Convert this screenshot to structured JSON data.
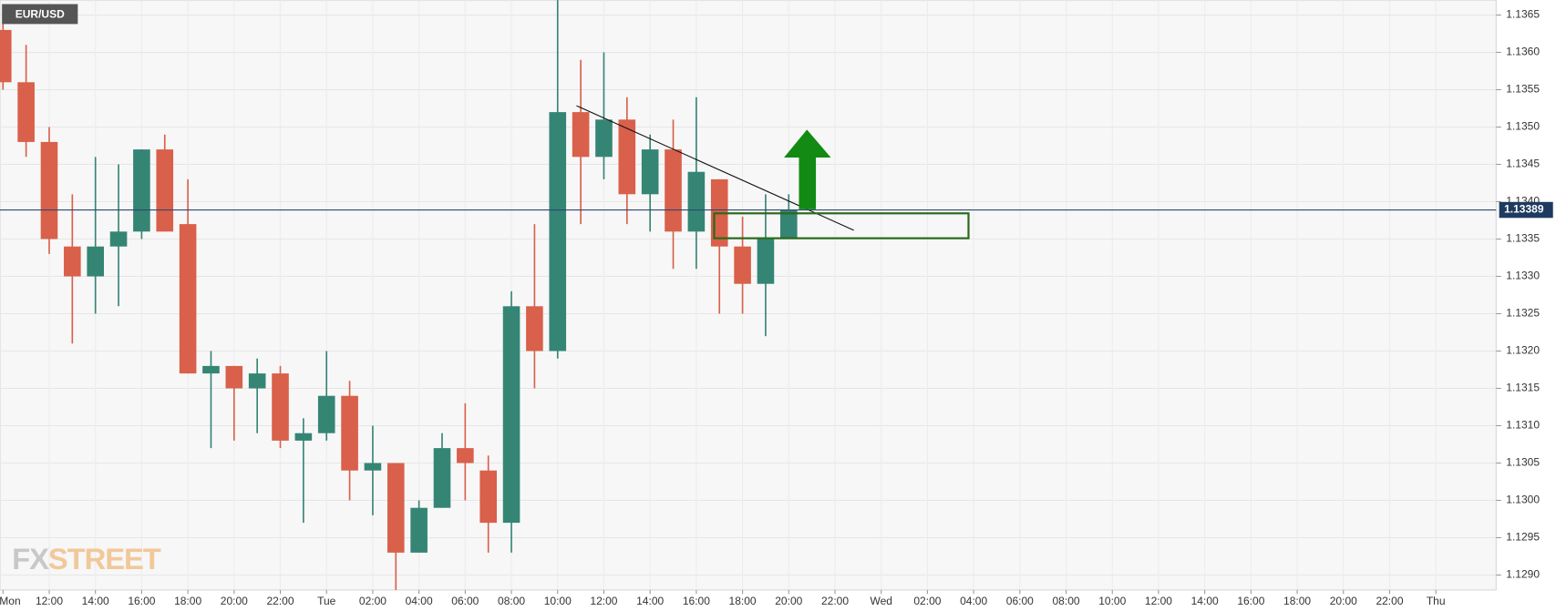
{
  "chart_data": {
    "type": "candlestick",
    "title": "EUR/USD",
    "watermark": {
      "prefix": "FX",
      "suffix": "STREET"
    },
    "categories": [
      "Mon",
      null,
      "12:00",
      null,
      "14:00",
      null,
      "16:00",
      null,
      "18:00",
      null,
      "20:00",
      null,
      "22:00",
      null,
      "Tue",
      null,
      "02:00",
      null,
      "04:00",
      null,
      "06:00",
      null,
      "08:00",
      null,
      "10:00",
      null,
      "12:00",
      null,
      "14:00",
      null,
      "16:00",
      null,
      "18:00",
      null,
      "20:00",
      null,
      "22:00",
      null,
      "Wed",
      null,
      "02:00",
      null,
      "04:00",
      null,
      "06:00",
      null,
      "08:00",
      null,
      "10:00",
      null,
      "12:00",
      null,
      "14:00",
      null,
      "16:00",
      null,
      "18:00",
      null,
      "20:00",
      null,
      "22:00",
      null,
      "Thu",
      null,
      null
    ],
    "open": [
      1.1363,
      1.1356,
      1.1348,
      1.1334,
      1.133,
      1.1334,
      1.1336,
      1.1347,
      1.1337,
      1.1317,
      1.1318,
      1.1315,
      1.1317,
      1.1308,
      1.1309,
      1.1314,
      1.1304,
      1.1305,
      1.1293,
      1.1299,
      1.1307,
      1.1304,
      1.1297,
      1.1326,
      1.132,
      1.1352,
      1.1346,
      1.1351,
      1.1341,
      1.1347,
      1.1336,
      1.1343,
      1.1334,
      1.1329,
      1.1335,
      null,
      null,
      null,
      null,
      null,
      null,
      null,
      null,
      null,
      null,
      null,
      null,
      null,
      null,
      null,
      null,
      null,
      null,
      null,
      null,
      null,
      null,
      null,
      null,
      null,
      null,
      null,
      null,
      null,
      null
    ],
    "high": [
      1.1366,
      1.1361,
      1.135,
      1.1341,
      1.1346,
      1.1345,
      1.1347,
      1.1349,
      1.1343,
      1.132,
      1.1318,
      1.1319,
      1.1318,
      1.1311,
      1.132,
      1.1316,
      1.131,
      1.1305,
      1.13,
      1.1309,
      1.1313,
      1.1306,
      1.1328,
      1.1337,
      1.1367,
      1.1359,
      1.136,
      1.1354,
      1.1349,
      1.1351,
      1.1354,
      1.1343,
      1.1338,
      1.1341,
      1.1341,
      null,
      null,
      null,
      null,
      null,
      null,
      null,
      null,
      null,
      null,
      null,
      null,
      null,
      null,
      null,
      null,
      null,
      null,
      null,
      null,
      null,
      null,
      null,
      null,
      null,
      null,
      null,
      null,
      null,
      null
    ],
    "low": [
      1.1355,
      1.1346,
      1.1333,
      1.1321,
      1.1325,
      1.1326,
      1.1335,
      1.1336,
      1.1317,
      1.1307,
      1.1308,
      1.1309,
      1.1307,
      1.1297,
      1.1308,
      1.13,
      1.1298,
      1.1288,
      1.1293,
      1.1299,
      1.13,
      1.1293,
      1.1293,
      1.1315,
      1.1319,
      1.1337,
      1.1343,
      1.1337,
      1.1336,
      1.1331,
      1.1331,
      1.1325,
      1.1325,
      1.1322,
      1.1335,
      null,
      null,
      null,
      null,
      null,
      null,
      null,
      null,
      null,
      null,
      null,
      null,
      null,
      null,
      null,
      null,
      null,
      null,
      null,
      null,
      null,
      null,
      null,
      null,
      null,
      null,
      null,
      null,
      null,
      null
    ],
    "close": [
      1.1356,
      1.1348,
      1.1335,
      1.133,
      1.1334,
      1.1336,
      1.1347,
      1.1336,
      1.1317,
      1.1318,
      1.1315,
      1.1317,
      1.1308,
      1.1309,
      1.1314,
      1.1304,
      1.1305,
      1.1293,
      1.1299,
      1.1307,
      1.1305,
      1.1297,
      1.1326,
      1.132,
      1.1352,
      1.1346,
      1.1351,
      1.1341,
      1.1347,
      1.1336,
      1.1344,
      1.1334,
      1.1329,
      1.1335,
      1.13389,
      null,
      null,
      null,
      null,
      null,
      null,
      null,
      null,
      null,
      null,
      null,
      null,
      null,
      null,
      null,
      null,
      null,
      null,
      null,
      null,
      null,
      null,
      null,
      null,
      null,
      null,
      null,
      null,
      null,
      null
    ],
    "up_color": "#358575",
    "down_color": "#d9604a",
    "last_price": 1.13389,
    "ylim": [
      1.1288,
      1.1367
    ],
    "yticks": [
      {
        "value": 1.129,
        "label": "1.1290"
      },
      1.1295,
      {
        "value": 1.13,
        "label": "1.1300"
      },
      1.1305,
      {
        "value": 1.131,
        "label": "1.1310"
      },
      1.1315,
      {
        "value": 1.132,
        "label": "1.1320"
      },
      1.1325,
      {
        "value": 1.133,
        "label": "1.1330"
      },
      1.1335,
      {
        "value": 1.134,
        "label": "1.1340"
      },
      1.1345,
      {
        "value": 1.135,
        "label": "1.1350"
      },
      1.1355,
      {
        "value": 1.136,
        "label": "1.1360"
      },
      1.1365
    ],
    "grid": true
  }
}
